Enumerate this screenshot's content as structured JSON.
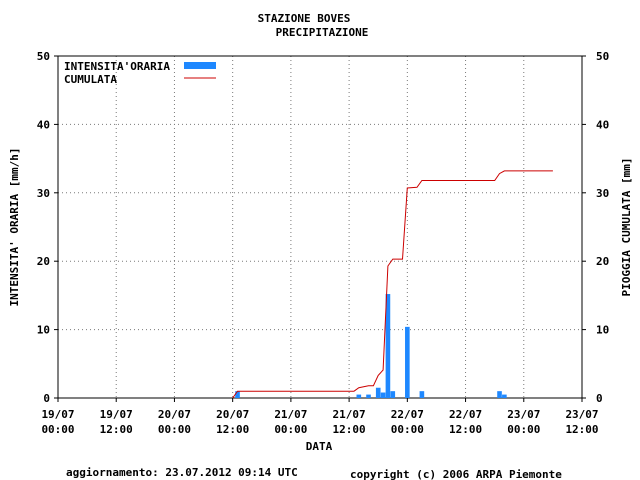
{
  "chart_data": {
    "type": "bar",
    "title": "STAZIONE BOVES",
    "subtitle": "PRECIPITAZIONE",
    "xlabel": "DATA",
    "ylabel_left": "INTENSITA' ORARIA [mm/h]",
    "ylabel_right": "PIOGGIA CUMULATA [mm]",
    "ylim": [
      0,
      50
    ],
    "y_ticks": [
      "0",
      "10",
      "20",
      "30",
      "40",
      "50"
    ],
    "x_ticks": [
      {
        "line1": "19/07",
        "line2": "00:00"
      },
      {
        "line1": "19/07",
        "line2": "12:00"
      },
      {
        "line1": "20/07",
        "line2": "00:00"
      },
      {
        "line1": "20/07",
        "line2": "12:00"
      },
      {
        "line1": "21/07",
        "line2": "00:00"
      },
      {
        "line1": "21/07",
        "line2": "12:00"
      },
      {
        "line1": "22/07",
        "line2": "00:00"
      },
      {
        "line1": "22/07",
        "line2": "12:00"
      },
      {
        "line1": "23/07",
        "line2": "00:00"
      },
      {
        "line1": "23/07",
        "line2": "12:00"
      }
    ],
    "grid": true,
    "legend_position": "top-left",
    "series": [
      {
        "name": "INTENSITA'ORARIA",
        "kind": "bar",
        "color": "#1e88ff",
        "points": [
          {
            "t": 37,
            "v": 1.0
          },
          {
            "t": 62,
            "v": 0.5
          },
          {
            "t": 64,
            "v": 0.5
          },
          {
            "t": 66,
            "v": 1.5
          },
          {
            "t": 67,
            "v": 0.8
          },
          {
            "t": 68,
            "v": 15.2
          },
          {
            "t": 69,
            "v": 1.0
          },
          {
            "t": 72,
            "v": 10.4
          },
          {
            "t": 75,
            "v": 1.0
          },
          {
            "t": 91,
            "v": 1.0
          },
          {
            "t": 92,
            "v": 0.5
          }
        ]
      },
      {
        "name": "CUMULATA",
        "kind": "line",
        "color": "#cc0000",
        "points": [
          {
            "t": 36,
            "v": 0
          },
          {
            "t": 37,
            "v": 1.0
          },
          {
            "t": 61,
            "v": 1.0
          },
          {
            "t": 62,
            "v": 1.5
          },
          {
            "t": 64,
            "v": 1.8
          },
          {
            "t": 65,
            "v": 1.8
          },
          {
            "t": 66,
            "v": 3.3
          },
          {
            "t": 67,
            "v": 4.1
          },
          {
            "t": 68,
            "v": 19.3
          },
          {
            "t": 69,
            "v": 20.3
          },
          {
            "t": 71,
            "v": 20.3
          },
          {
            "t": 72,
            "v": 30.7
          },
          {
            "t": 74,
            "v": 30.8
          },
          {
            "t": 75,
            "v": 31.8
          },
          {
            "t": 90,
            "v": 31.8
          },
          {
            "t": 91,
            "v": 32.8
          },
          {
            "t": 92,
            "v": 33.2
          },
          {
            "t": 102,
            "v": 33.2
          }
        ]
      }
    ]
  },
  "footer": {
    "update_text": "aggiornamento: 23.07.2012 09:14 UTC",
    "copyright_text": "copyright (c) 2006 ARPA Piemonte",
    "copyright_color": "#1a1a8c"
  }
}
